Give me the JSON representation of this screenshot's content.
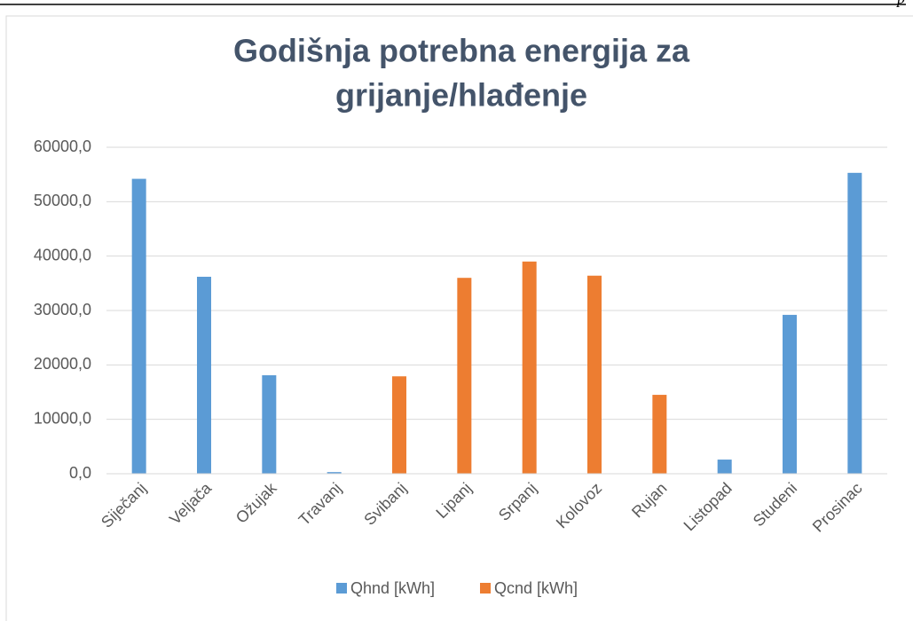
{
  "header_text": "p",
  "chart_data": {
    "type": "bar",
    "title": [
      "Godišnja potrebna energija za",
      "grijanje/hlađenje"
    ],
    "categories": [
      "Siječanj",
      "Veljača",
      "Ožujak",
      "Travanj",
      "Svibanj",
      "Lipanj",
      "Srpanj",
      "Kolovoz",
      "Rujan",
      "Listopad",
      "Studeni",
      "Prosinac"
    ],
    "series": [
      {
        "name": "Qhnd [kWh]",
        "color": "#5b9bd5",
        "values": [
          54200,
          36200,
          18100,
          300,
          0,
          0,
          0,
          0,
          0,
          2600,
          29200,
          55300
        ]
      },
      {
        "name": "Qcnd [kWh]",
        "color": "#ed7d31",
        "values": [
          0,
          0,
          0,
          0,
          17900,
          36000,
          39000,
          36400,
          14500,
          0,
          0,
          0
        ]
      }
    ],
    "ylim": [
      0,
      60000
    ],
    "yticks": [
      {
        "value": 0,
        "label": "0,0"
      },
      {
        "value": 10000,
        "label": "10000,0"
      },
      {
        "value": 20000,
        "label": "20000,0"
      },
      {
        "value": 30000,
        "label": "30000,0"
      },
      {
        "value": 40000,
        "label": "40000,0"
      },
      {
        "value": 50000,
        "label": "50000,0"
      },
      {
        "value": 60000,
        "label": "60000,0"
      }
    ],
    "grid": true,
    "legend": "bottom"
  }
}
